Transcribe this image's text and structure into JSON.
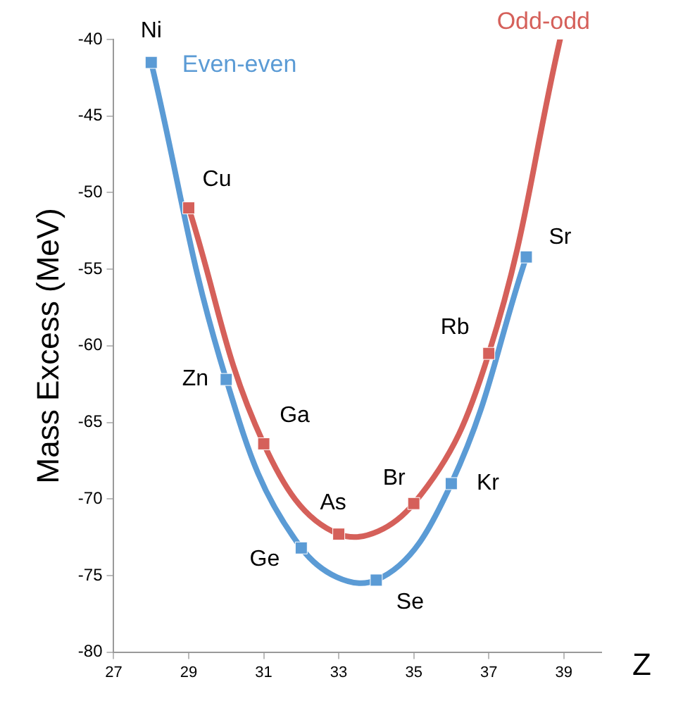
{
  "chart_data": {
    "type": "line",
    "xlabel": "Z",
    "ylabel": "Mass Excess (MeV)",
    "xlim": [
      27,
      40
    ],
    "xticks": [
      27,
      29,
      31,
      33,
      35,
      37,
      39
    ],
    "ylim": [
      -80,
      -40
    ],
    "yticks": [
      -80,
      -75,
      -70,
      -65,
      -60,
      -55,
      -50,
      -45,
      -40
    ],
    "grid": false,
    "legend": false,
    "series": [
      {
        "name": "Even-even",
        "color": "#5b9bd5",
        "marker": "square",
        "x": [
          28,
          30,
          32,
          34,
          36,
          38
        ],
        "values": [
          -41.5,
          -62.2,
          -73.2,
          -75.3,
          -69,
          -54.2
        ]
      },
      {
        "name": "Odd-odd",
        "type": "scatter",
        "color": "#d5605a",
        "marker": "square",
        "x": [
          29,
          31,
          33,
          35,
          37
        ],
        "values": [
          -51,
          -66.4,
          -72.3,
          -70.3,
          -60.5
        ]
      },
      {
        "color": "#d5605a",
        "marker": "none",
        "x": [
          29,
          31,
          33,
          35,
          37,
          38.9
        ],
        "values": [
          -51,
          -66.4,
          -72.3,
          -70.3,
          -60.5,
          -40
        ]
      }
    ],
    "annotations": [
      {
        "text": "Ni",
        "x": 28,
        "y": -41.5
      },
      {
        "text": "Cu",
        "x": 29,
        "y": -51
      },
      {
        "text": "Zn",
        "x": 30,
        "y": -62.2
      },
      {
        "text": "Ga",
        "x": 31,
        "y": -66.4
      },
      {
        "text": "Ge",
        "x": 32,
        "y": -73.2
      },
      {
        "text": "As",
        "x": 33,
        "y": -72.3
      },
      {
        "text": "Se",
        "x": 34,
        "y": -75.3
      },
      {
        "text": "Br",
        "x": 35,
        "y": -70.3
      },
      {
        "text": "Kr",
        "x": 36,
        "y": -69
      },
      {
        "text": "Rb",
        "x": 37,
        "y": -60.5
      },
      {
        "text": "Sr",
        "x": 38,
        "y": -54.2
      }
    ]
  }
}
